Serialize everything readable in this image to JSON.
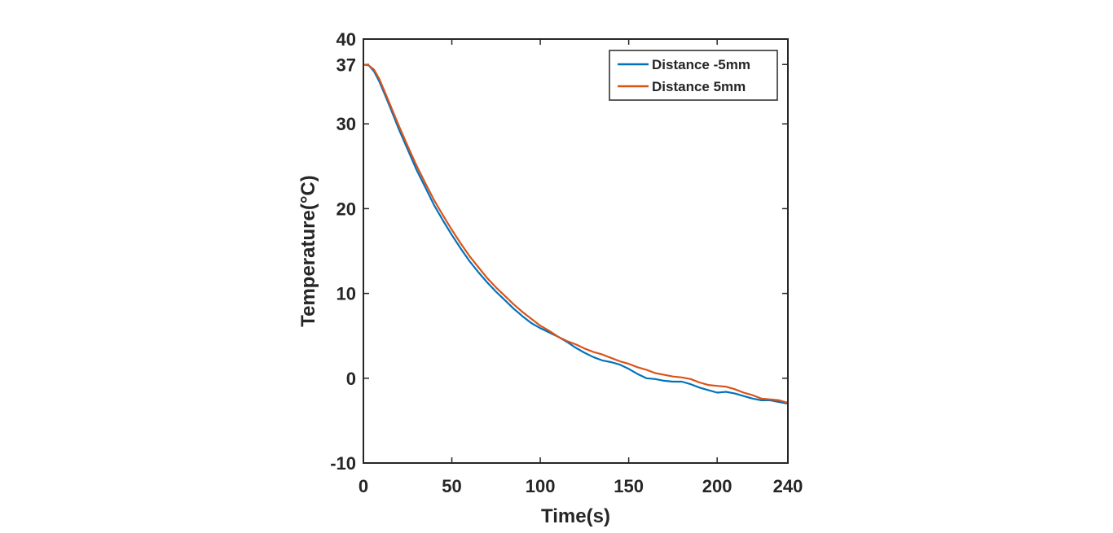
{
  "chart_data": {
    "type": "line",
    "title": "",
    "xlabel": "Time(s)",
    "ylabel": "Temperature(°C)",
    "xlim": [
      0,
      240
    ],
    "ylim": [
      -10,
      40
    ],
    "xticks": [
      0,
      50,
      100,
      150,
      200,
      240
    ],
    "xtick_labels": [
      "0",
      "50",
      "100",
      "150",
      "200",
      "240"
    ],
    "yticks": [
      -10,
      0,
      10,
      20,
      30,
      37,
      40
    ],
    "ytick_labels": [
      "-10",
      "0",
      "10",
      "20",
      "30",
      "37",
      "40"
    ],
    "grid": false,
    "legend_position": "top-right",
    "series": [
      {
        "name": "Distance -5mm",
        "color": "#0072BD",
        "points": [
          [
            0,
            37.0
          ],
          [
            3,
            36.9
          ],
          [
            6,
            36.2
          ],
          [
            9,
            35.0
          ],
          [
            12,
            33.5
          ],
          [
            15,
            32.0
          ],
          [
            20,
            29.4
          ],
          [
            25,
            27.0
          ],
          [
            30,
            24.6
          ],
          [
            35,
            22.5
          ],
          [
            40,
            20.4
          ],
          [
            45,
            18.6
          ],
          [
            50,
            16.9
          ],
          [
            55,
            15.3
          ],
          [
            60,
            13.8
          ],
          [
            65,
            12.5
          ],
          [
            70,
            11.3
          ],
          [
            75,
            10.2
          ],
          [
            80,
            9.2
          ],
          [
            85,
            8.2
          ],
          [
            90,
            7.3
          ],
          [
            95,
            6.5
          ],
          [
            100,
            5.9
          ],
          [
            105,
            5.4
          ],
          [
            110,
            4.9
          ],
          [
            115,
            4.3
          ],
          [
            120,
            3.6
          ],
          [
            125,
            3.0
          ],
          [
            130,
            2.5
          ],
          [
            135,
            2.1
          ],
          [
            140,
            1.9
          ],
          [
            145,
            1.6
          ],
          [
            150,
            1.1
          ],
          [
            155,
            0.5
          ],
          [
            160,
            0.0
          ],
          [
            165,
            -0.1
          ],
          [
            170,
            -0.3
          ],
          [
            175,
            -0.4
          ],
          [
            180,
            -0.4
          ],
          [
            185,
            -0.7
          ],
          [
            190,
            -1.1
          ],
          [
            195,
            -1.4
          ],
          [
            200,
            -1.7
          ],
          [
            205,
            -1.6
          ],
          [
            210,
            -1.8
          ],
          [
            215,
            -2.1
          ],
          [
            220,
            -2.4
          ],
          [
            225,
            -2.6
          ],
          [
            230,
            -2.6
          ],
          [
            235,
            -2.8
          ],
          [
            240,
            -3.0
          ]
        ]
      },
      {
        "name": "Distance  5mm",
        "color": "#D95319",
        "points": [
          [
            0,
            37.0
          ],
          [
            3,
            36.9
          ],
          [
            6,
            36.4
          ],
          [
            9,
            35.3
          ],
          [
            12,
            33.8
          ],
          [
            15,
            32.3
          ],
          [
            20,
            29.8
          ],
          [
            25,
            27.4
          ],
          [
            30,
            25.1
          ],
          [
            35,
            23.0
          ],
          [
            40,
            21.0
          ],
          [
            45,
            19.2
          ],
          [
            50,
            17.5
          ],
          [
            55,
            15.9
          ],
          [
            60,
            14.4
          ],
          [
            65,
            13.1
          ],
          [
            70,
            11.8
          ],
          [
            75,
            10.7
          ],
          [
            80,
            9.7
          ],
          [
            85,
            8.7
          ],
          [
            90,
            7.8
          ],
          [
            95,
            7.0
          ],
          [
            100,
            6.2
          ],
          [
            105,
            5.6
          ],
          [
            110,
            4.9
          ],
          [
            115,
            4.4
          ],
          [
            120,
            4.0
          ],
          [
            125,
            3.5
          ],
          [
            130,
            3.1
          ],
          [
            135,
            2.8
          ],
          [
            140,
            2.4
          ],
          [
            145,
            2.0
          ],
          [
            150,
            1.7
          ],
          [
            155,
            1.3
          ],
          [
            160,
            1.0
          ],
          [
            165,
            0.6
          ],
          [
            170,
            0.4
          ],
          [
            175,
            0.2
          ],
          [
            180,
            0.1
          ],
          [
            185,
            -0.1
          ],
          [
            190,
            -0.5
          ],
          [
            195,
            -0.8
          ],
          [
            200,
            -0.9
          ],
          [
            205,
            -1.0
          ],
          [
            210,
            -1.3
          ],
          [
            215,
            -1.7
          ],
          [
            220,
            -2.0
          ],
          [
            225,
            -2.4
          ],
          [
            230,
            -2.5
          ],
          [
            235,
            -2.6
          ],
          [
            240,
            -2.9
          ]
        ]
      }
    ]
  }
}
